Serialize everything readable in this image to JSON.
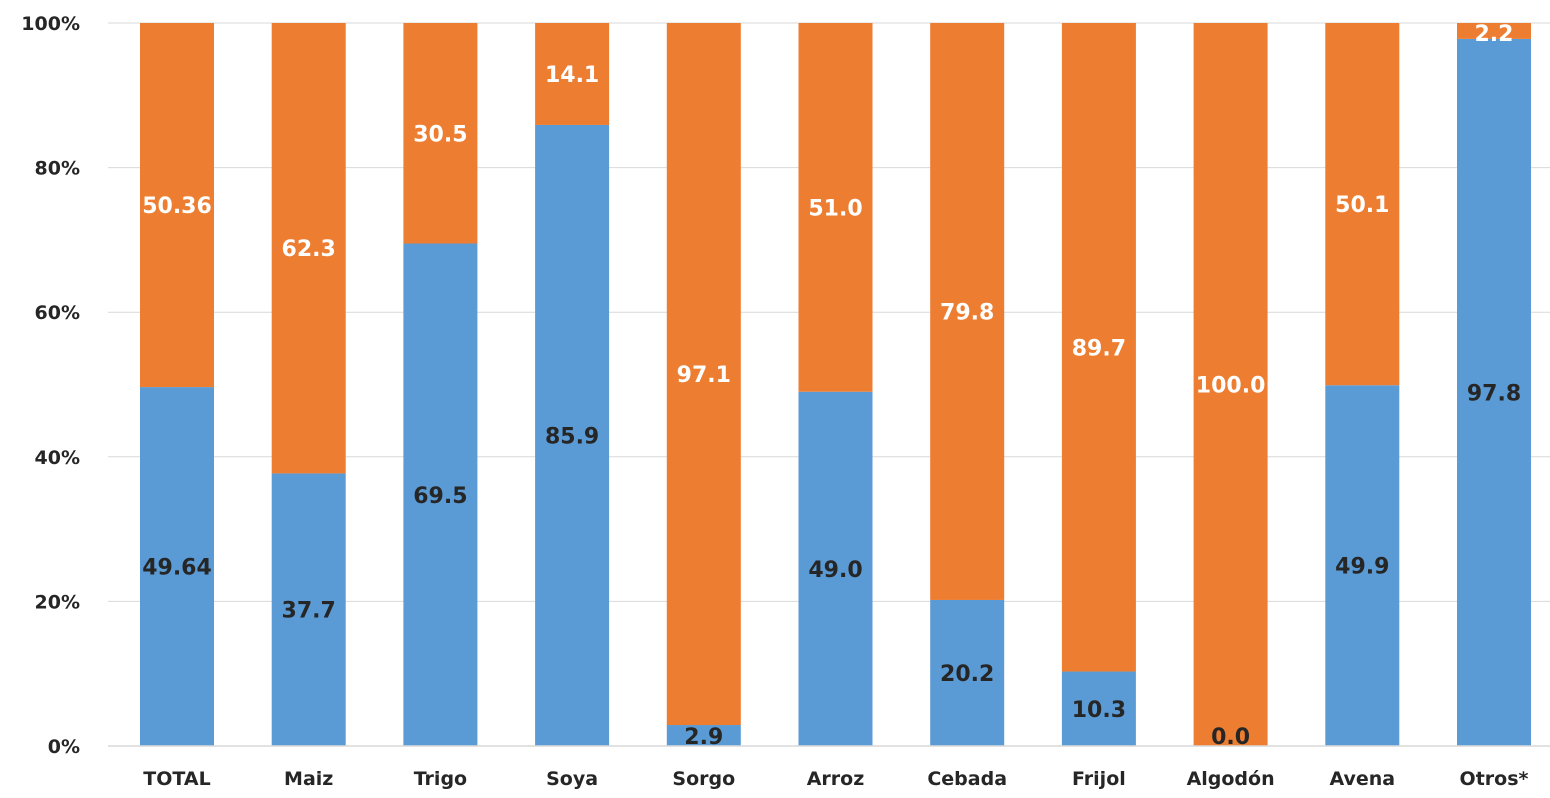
{
  "chart_data": {
    "type": "bar",
    "stacked": true,
    "percent": true,
    "categories": [
      "TOTAL",
      "Maiz",
      "Trigo",
      "Soya",
      "Sorgo",
      "Arroz",
      "Cebada",
      "Frijol",
      "Algodón",
      "Avena",
      "Otros*"
    ],
    "series": [
      {
        "color": "#5b9bd5",
        "values": [
          49.64,
          37.7,
          69.5,
          85.9,
          2.9,
          49.0,
          20.2,
          10.3,
          0.0,
          49.9,
          97.8
        ],
        "labels": [
          "49.64",
          "37.7",
          "69.5",
          "85.9",
          "2.9",
          "49.0",
          "20.2",
          "10.3",
          "0.0",
          "49.9",
          "97.8"
        ],
        "label_color": "#262626"
      },
      {
        "color": "#ed7d31",
        "values": [
          50.36,
          62.3,
          30.5,
          14.1,
          97.1,
          51.0,
          79.8,
          89.7,
          100.0,
          50.1,
          2.2
        ],
        "labels": [
          "50.36",
          "62.3",
          "30.5",
          "14.1",
          "97.1",
          "51.0",
          "79.8",
          "89.7",
          "100.0",
          "50.1",
          "2.2"
        ],
        "label_color": "#ffffff"
      }
    ],
    "y_ticks": [
      "0%",
      "20%",
      "40%",
      "60%",
      "80%",
      "100%"
    ],
    "ylim": [
      0,
      100
    ],
    "grid": true,
    "legend": "none",
    "title": "",
    "xlabel": "",
    "ylabel": ""
  }
}
